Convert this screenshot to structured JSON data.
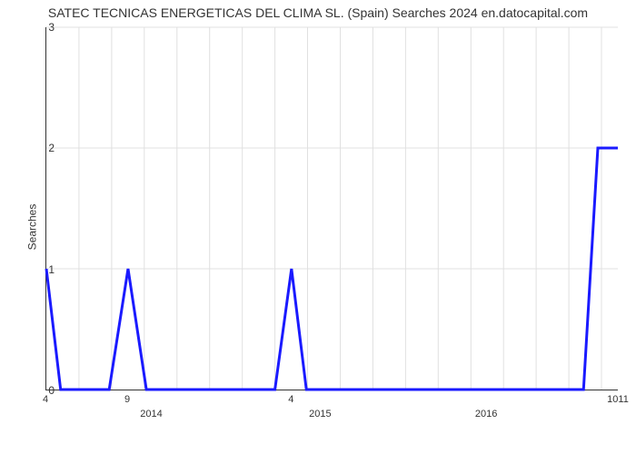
{
  "chart": {
    "type": "line",
    "title": "SATEC TECNICAS ENERGETICAS DEL CLIMA SL. (Spain) Searches 2024 en.datocapital.com",
    "title_fontsize": 14,
    "background_color": "#ffffff",
    "grid_color": "#e0e0e0",
    "line_color": "#1a1aff",
    "line_width": 3,
    "ylabel": "Searches",
    "yaxis": {
      "min": 0,
      "max": 3,
      "ticks": [
        0,
        1,
        2,
        3
      ]
    },
    "xaxis": {
      "minor_ticks": [
        "4",
        "9",
        "4",
        "1011"
      ],
      "minor_tick_positions_pct": [
        0,
        14.3,
        42.9,
        100
      ],
      "year_labels": [
        "2014",
        "2015",
        "2016"
      ],
      "year_positions_pct": [
        18.5,
        48,
        77
      ]
    },
    "grid_v_positions_pct": [
      5.71,
      11.43,
      17.14,
      22.86,
      28.57,
      34.29,
      40,
      45.71,
      51.43,
      57.14,
      62.86,
      68.57,
      74.29,
      80,
      85.71,
      91.43,
      97.14
    ],
    "series": {
      "x_pct": [
        0,
        2.5,
        5,
        11,
        14.3,
        17.5,
        20,
        37,
        40,
        42.9,
        45.5,
        48,
        94,
        96.5,
        100
      ],
      "y_val": [
        1,
        0,
        0,
        0,
        1,
        0,
        0,
        0,
        0,
        1,
        0,
        0,
        0,
        2,
        2
      ]
    }
  }
}
